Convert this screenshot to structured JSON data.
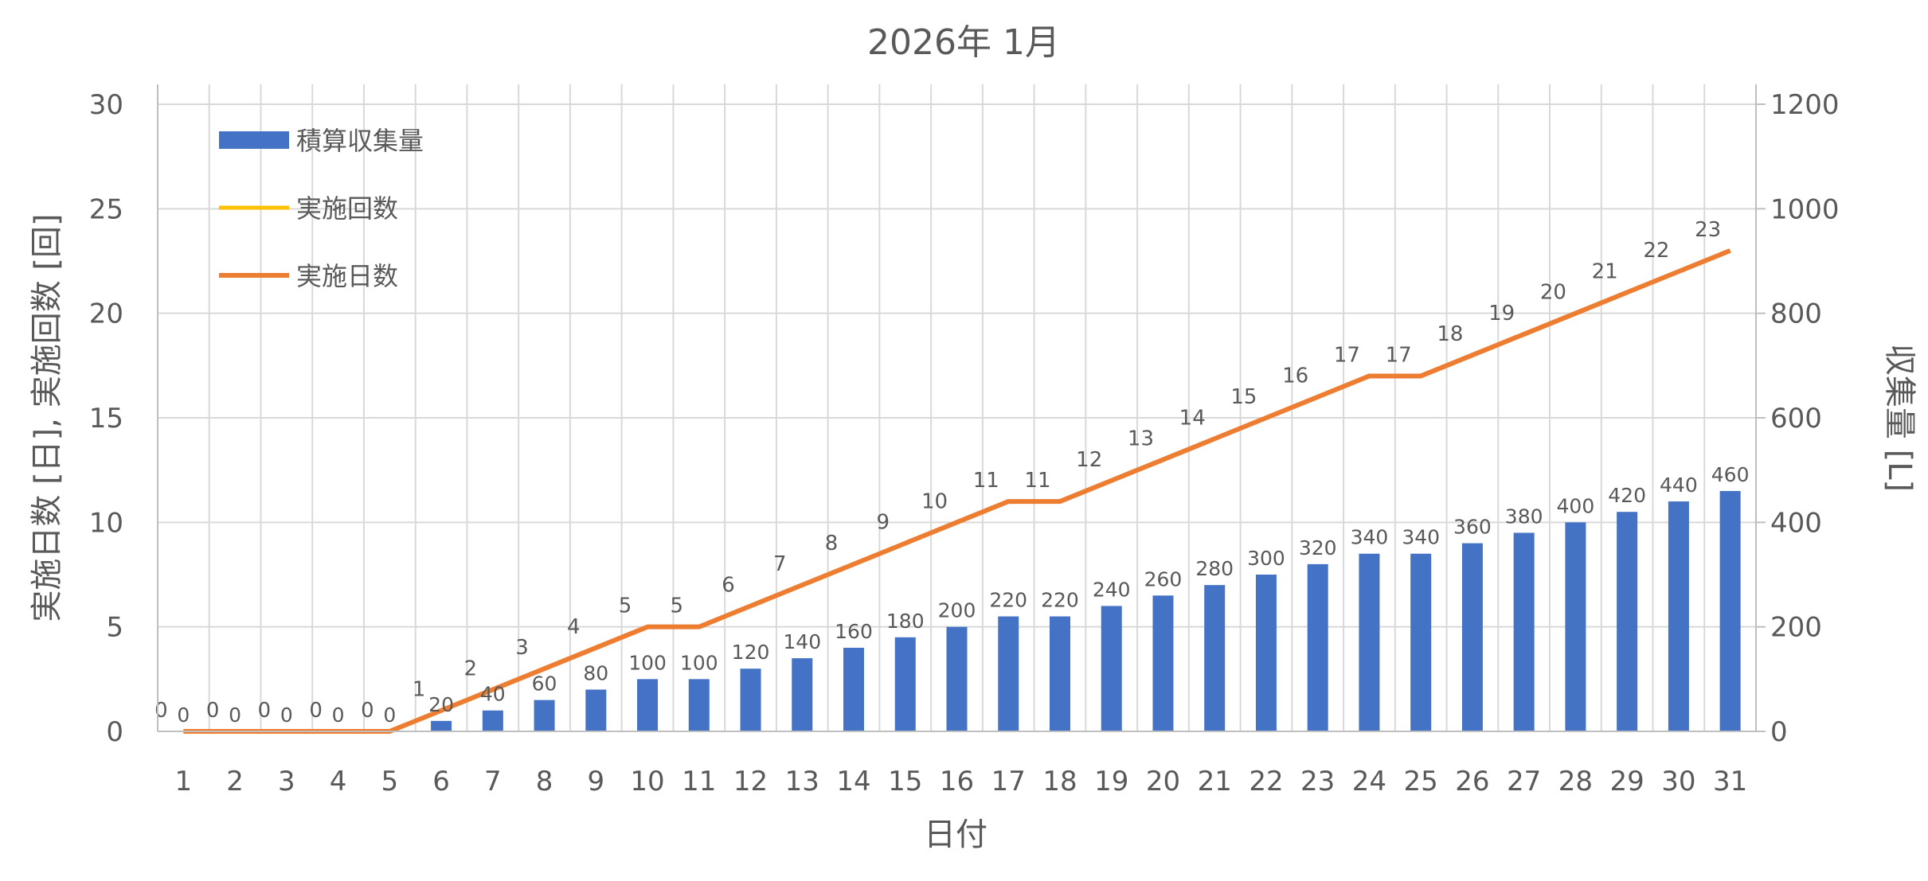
{
  "chart_data": {
    "type": "bar+line",
    "title": "2026年 1月",
    "xlabel": "日付",
    "ylabel_left": "実施日数 [日], 実施回数 [回]",
    "ylabel_right": "収集量 [L]",
    "ylim_left": [
      0,
      30
    ],
    "yticks_left": [
      0,
      5,
      10,
      15,
      20,
      25,
      30
    ],
    "ylim_right": [
      0,
      1200
    ],
    "yticks_right": [
      0,
      200,
      400,
      600,
      800,
      1000,
      1200
    ],
    "grid": true,
    "legend_position": "top-left",
    "categories": [
      "1",
      "2",
      "3",
      "4",
      "5",
      "6",
      "7",
      "8",
      "9",
      "10",
      "11",
      "12",
      "13",
      "14",
      "15",
      "16",
      "17",
      "18",
      "19",
      "20",
      "21",
      "22",
      "23",
      "24",
      "25",
      "26",
      "27",
      "28",
      "29",
      "30",
      "31"
    ],
    "series": [
      {
        "name": "積算収集量",
        "type": "bar",
        "axis": "right",
        "color": "#4472C4",
        "values": [
          0,
          0,
          0,
          0,
          0,
          20,
          40,
          60,
          80,
          100,
          100,
          120,
          140,
          160,
          180,
          200,
          220,
          220,
          240,
          260,
          280,
          300,
          320,
          340,
          340,
          360,
          380,
          400,
          420,
          440,
          460
        ]
      },
      {
        "name": "実施回数",
        "type": "line",
        "axis": "left",
        "color": "#FFC000",
        "values": [
          0,
          0,
          0,
          0,
          0,
          1,
          2,
          3,
          4,
          5,
          5,
          6,
          7,
          8,
          9,
          10,
          11,
          11,
          12,
          13,
          14,
          15,
          16,
          17,
          17,
          18,
          19,
          20,
          21,
          22,
          23
        ]
      },
      {
        "name": "実施日数",
        "type": "line",
        "axis": "left",
        "color": "#ED7D31",
        "values": [
          0,
          0,
          0,
          0,
          0,
          1,
          2,
          3,
          4,
          5,
          5,
          6,
          7,
          8,
          9,
          10,
          11,
          11,
          12,
          13,
          14,
          15,
          16,
          17,
          17,
          18,
          19,
          20,
          21,
          22,
          23
        ]
      }
    ]
  }
}
